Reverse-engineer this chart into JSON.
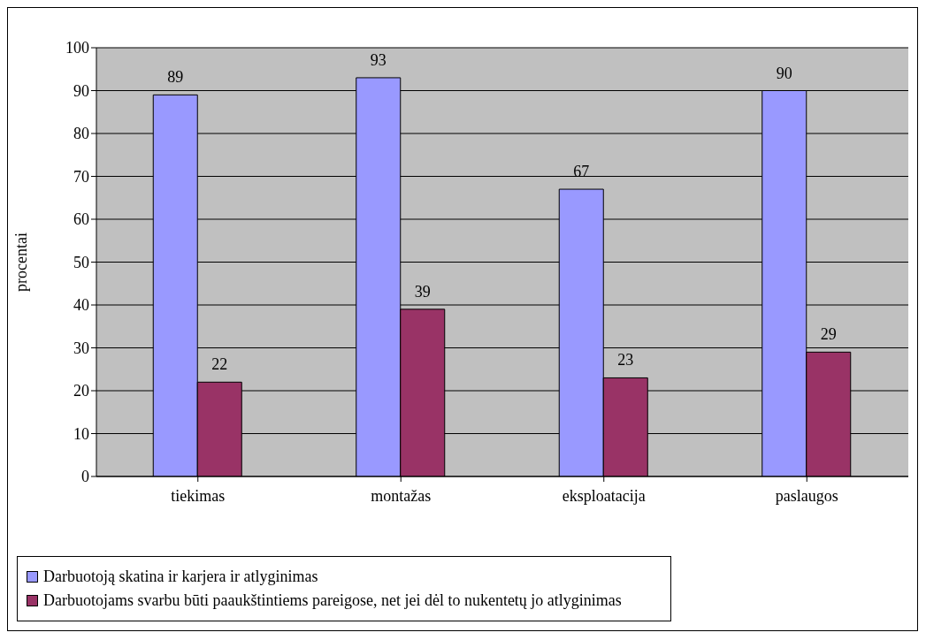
{
  "chart_data": {
    "type": "bar",
    "ylabel": "procentai",
    "categories": [
      "tiekimas",
      "montažas",
      "eksploatacija",
      "paslaugos"
    ],
    "series": [
      {
        "name": "Darbuotoją skatina ir karjera ir atlyginimas",
        "color": "#9999ff",
        "values": [
          89,
          93,
          67,
          90
        ]
      },
      {
        "name": "Darbuotojams svarbu būti paaukštintiems pareigose, net jei dėl to nukentetų jo atlyginimas",
        "color": "#993366",
        "values": [
          22,
          39,
          23,
          29
        ]
      }
    ],
    "ylim": [
      0,
      100
    ],
    "yticks": [
      0,
      10,
      20,
      30,
      40,
      50,
      60,
      70,
      80,
      90,
      100
    ],
    "grid": "y",
    "legend": "bottom",
    "data_labels": true
  }
}
